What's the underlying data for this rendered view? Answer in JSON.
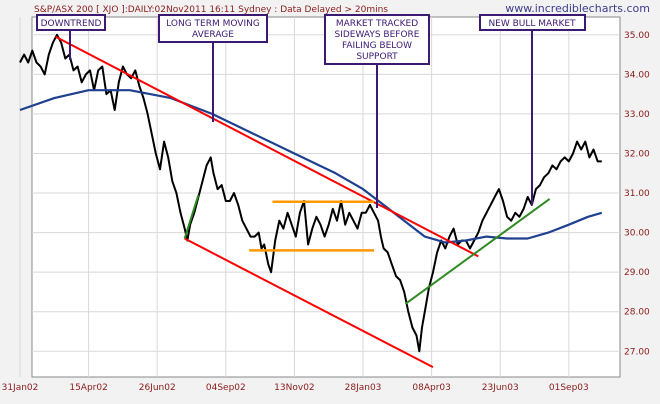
{
  "header": {
    "info": "S&P/ASX 200 [ XJO ]:DAILY:02Nov2011 16:11 Sydney : Data Delayed > 20mins",
    "site": "www.incrediblecharts.com"
  },
  "annotations": {
    "downtrend": "DOWNTREND",
    "moving_average": [
      "LONG TERM MOVING",
      "AVERAGE"
    ],
    "sideways": [
      "MARKET TRACKED",
      "SIDEWAYS BEFORE",
      "FAILING BELOW",
      "SUPPORT"
    ],
    "bull_market": "NEW BULL MARKET"
  },
  "colors": {
    "price": "#000000",
    "moving_average": "#1f3f8f",
    "downtrend": "#ff0000",
    "uptrend": "#2e8b22",
    "range": "#ff9900",
    "callout": "#3c1a73",
    "axis_text": "#8b1a1a",
    "plot_bg": "#ffffff",
    "page_bg": "#f2f2f2",
    "grid": "#d8d8d8"
  },
  "chart_data": {
    "type": "line",
    "x_axis": {
      "labels": [
        "31Jan02",
        "15Apr02",
        "26Jun02",
        "04Sep02",
        "13Nov02",
        "28Jan03",
        "08Apr03",
        "23Jun03",
        "01Sep03"
      ],
      "indices": [
        0,
        50,
        100,
        150,
        200,
        250,
        300,
        350,
        400
      ]
    },
    "y_axis": {
      "labels": [
        "27.00",
        "28.00",
        "29.00",
        "30.00",
        "31.00",
        "32.00",
        "33.00",
        "34.00",
        "35.00"
      ],
      "values": [
        27,
        28,
        29,
        30,
        31,
        32,
        33,
        34,
        35
      ],
      "ylim": [
        26.35,
        35.45
      ],
      "grid": true
    },
    "x_range": [
      0,
      430
    ],
    "series": [
      {
        "key": "price",
        "points": [
          [
            0,
            34.3
          ],
          [
            3,
            34.5
          ],
          [
            6,
            34.3
          ],
          [
            9,
            34.6
          ],
          [
            12,
            34.3
          ],
          [
            15,
            34.2
          ],
          [
            18,
            34.0
          ],
          [
            21,
            34.5
          ],
          [
            24,
            34.8
          ],
          [
            27,
            35.0
          ],
          [
            30,
            34.8
          ],
          [
            33,
            34.4
          ],
          [
            36,
            34.5
          ],
          [
            39,
            34.1
          ],
          [
            42,
            34.2
          ],
          [
            45,
            33.8
          ],
          [
            48,
            34.0
          ],
          [
            51,
            34.1
          ],
          [
            54,
            33.6
          ],
          [
            57,
            34.1
          ],
          [
            60,
            34.2
          ],
          [
            63,
            33.5
          ],
          [
            66,
            33.6
          ],
          [
            69,
            33.1
          ],
          [
            72,
            33.8
          ],
          [
            75,
            34.2
          ],
          [
            78,
            34.0
          ],
          [
            81,
            33.9
          ],
          [
            84,
            34.1
          ],
          [
            87,
            33.7
          ],
          [
            90,
            33.4
          ],
          [
            93,
            33.0
          ],
          [
            96,
            32.5
          ],
          [
            99,
            32.0
          ],
          [
            102,
            31.6
          ],
          [
            105,
            32.3
          ],
          [
            108,
            31.9
          ],
          [
            111,
            31.3
          ],
          [
            114,
            31.0
          ],
          [
            117,
            30.5
          ],
          [
            120,
            30.1
          ],
          [
            122,
            29.8
          ],
          [
            124,
            30.2
          ],
          [
            127,
            30.5
          ],
          [
            130,
            30.9
          ],
          [
            133,
            31.3
          ],
          [
            136,
            31.7
          ],
          [
            139,
            31.9
          ],
          [
            141,
            31.5
          ],
          [
            144,
            31.1
          ],
          [
            147,
            31.2
          ],
          [
            150,
            30.8
          ],
          [
            153,
            30.8
          ],
          [
            156,
            31.0
          ],
          [
            159,
            30.7
          ],
          [
            162,
            30.3
          ],
          [
            165,
            30.1
          ],
          [
            168,
            29.9
          ],
          [
            171,
            29.9
          ],
          [
            174,
            30.0
          ],
          [
            176,
            29.6
          ],
          [
            178,
            29.7
          ],
          [
            181,
            29.2
          ],
          [
            183,
            29.0
          ],
          [
            186,
            29.8
          ],
          [
            189,
            30.3
          ],
          [
            192,
            30.1
          ],
          [
            195,
            30.5
          ],
          [
            198,
            30.2
          ],
          [
            201,
            29.9
          ],
          [
            204,
            30.5
          ],
          [
            207,
            30.8
          ],
          [
            210,
            29.7
          ],
          [
            213,
            30.1
          ],
          [
            216,
            30.4
          ],
          [
            219,
            30.2
          ],
          [
            222,
            29.9
          ],
          [
            225,
            30.2
          ],
          [
            228,
            30.6
          ],
          [
            231,
            30.3
          ],
          [
            234,
            30.8
          ],
          [
            237,
            30.2
          ],
          [
            240,
            30.5
          ],
          [
            243,
            30.3
          ],
          [
            246,
            30.1
          ],
          [
            249,
            30.5
          ],
          [
            252,
            30.5
          ],
          [
            255,
            30.7
          ],
          [
            258,
            30.5
          ],
          [
            261,
            30.3
          ],
          [
            263,
            29.9
          ],
          [
            265,
            29.6
          ],
          [
            268,
            29.5
          ],
          [
            271,
            29.2
          ],
          [
            274,
            28.9
          ],
          [
            277,
            28.8
          ],
          [
            280,
            28.5
          ],
          [
            283,
            28.0
          ],
          [
            286,
            27.6
          ],
          [
            289,
            27.4
          ],
          [
            291,
            27.0
          ],
          [
            293,
            27.6
          ],
          [
            295,
            28.0
          ],
          [
            298,
            28.6
          ],
          [
            301,
            29.0
          ],
          [
            304,
            29.5
          ],
          [
            307,
            29.8
          ],
          [
            310,
            29.6
          ],
          [
            313,
            29.9
          ],
          [
            316,
            30.1
          ],
          [
            319,
            29.7
          ],
          [
            322,
            29.8
          ],
          [
            325,
            29.8
          ],
          [
            328,
            29.6
          ],
          [
            331,
            29.8
          ],
          [
            334,
            30.0
          ],
          [
            337,
            30.3
          ],
          [
            340,
            30.5
          ],
          [
            343,
            30.7
          ],
          [
            346,
            30.9
          ],
          [
            349,
            31.1
          ],
          [
            352,
            30.8
          ],
          [
            355,
            30.4
          ],
          [
            358,
            30.3
          ],
          [
            361,
            30.5
          ],
          [
            364,
            30.4
          ],
          [
            367,
            30.6
          ],
          [
            370,
            30.9
          ],
          [
            373,
            30.7
          ],
          [
            376,
            31.1
          ],
          [
            379,
            31.2
          ],
          [
            382,
            31.4
          ],
          [
            385,
            31.5
          ],
          [
            388,
            31.7
          ],
          [
            391,
            31.6
          ],
          [
            394,
            31.8
          ],
          [
            397,
            31.9
          ],
          [
            400,
            31.8
          ],
          [
            403,
            32.0
          ],
          [
            406,
            32.3
          ],
          [
            409,
            32.1
          ],
          [
            412,
            32.3
          ],
          [
            415,
            31.9
          ],
          [
            418,
            32.1
          ],
          [
            421,
            31.8
          ],
          [
            424,
            31.8
          ]
        ]
      },
      {
        "key": "moving_average",
        "points": [
          [
            0,
            33.1
          ],
          [
            25,
            33.4
          ],
          [
            50,
            33.6
          ],
          [
            80,
            33.6
          ],
          [
            110,
            33.4
          ],
          [
            140,
            33.0
          ],
          [
            170,
            32.5
          ],
          [
            200,
            32.0
          ],
          [
            230,
            31.5
          ],
          [
            250,
            31.1
          ],
          [
            265,
            30.7
          ],
          [
            280,
            30.3
          ],
          [
            295,
            29.9
          ],
          [
            310,
            29.75
          ],
          [
            325,
            29.8
          ],
          [
            340,
            29.9
          ],
          [
            355,
            29.85
          ],
          [
            370,
            29.85
          ],
          [
            385,
            30.0
          ],
          [
            400,
            30.2
          ],
          [
            414,
            30.4
          ],
          [
            424,
            30.5
          ]
        ]
      }
    ],
    "trendlines": [
      {
        "key": "downtrend",
        "from": [
          26,
          34.95
        ],
        "to": [
          334,
          29.4
        ]
      },
      {
        "key": "downtrend",
        "from": [
          120,
          29.85
        ],
        "to": [
          301,
          26.6
        ]
      },
      {
        "key": "uptrend",
        "from": [
          120,
          29.85
        ],
        "to": [
          130,
          30.95
        ]
      },
      {
        "key": "uptrend",
        "from": [
          281,
          28.2
        ],
        "to": [
          386,
          30.85
        ]
      },
      {
        "key": "range",
        "from": [
          184,
          30.78
        ],
        "to": [
          258,
          30.78
        ]
      },
      {
        "key": "range",
        "from": [
          167,
          29.55
        ],
        "to": [
          258,
          29.55
        ]
      }
    ]
  }
}
